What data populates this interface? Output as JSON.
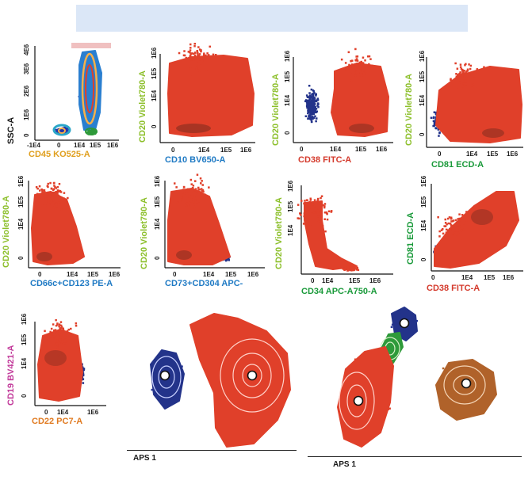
{
  "chart_data": [
    {
      "id": "p1",
      "type": "scatter",
      "xlabel": "CD45 KO525-A",
      "ylabel": "SSC-A",
      "xticks": [
        "-1E4",
        "0",
        "1E4",
        "1E5",
        "1E6"
      ],
      "yticks": [
        "0",
        "1E6",
        "2E6",
        "3E6",
        "4E6"
      ],
      "populations": [
        {
          "name": "",
          "color": "#e0402a",
          "x": 1.15,
          "y": 0.34,
          "ry": 0.23
        },
        {
          "name": "",
          "color": "#1d2a8a",
          "x": 0.15,
          "y": 0.04,
          "ry": 0.02
        },
        {
          "name": "",
          "color": "#2e9a3a",
          "x": 0.55,
          "y": 0.03,
          "ry": 0.015
        }
      ]
    },
    {
      "id": "p2",
      "type": "scatter",
      "xlabel": "CD10 BV650-A",
      "ylabel": "CD20 Violet780-A",
      "xticks": [
        "0",
        "1E4",
        "1E5",
        "1E6"
      ],
      "yticks": [
        "0",
        "1E4",
        "1E5",
        "1E6"
      ]
    },
    {
      "id": "p3",
      "type": "scatter",
      "xlabel": "CD38 FITC-A",
      "ylabel": "CD20 Violet780-A",
      "xticks": [
        "0",
        "1E4",
        "1E5",
        "1E6"
      ],
      "yticks": [
        "0",
        "1E4",
        "1E5",
        "1E6"
      ]
    },
    {
      "id": "p4",
      "type": "scatter",
      "xlabel": "CD81 ECD-A",
      "ylabel": "CD20 Violet780-A",
      "xticks": [
        "0",
        "1E4",
        "1E5",
        "1E6"
      ],
      "yticks": [
        "0",
        "1E4",
        "1E5",
        "1E6"
      ]
    },
    {
      "id": "p5",
      "type": "scatter",
      "xlabel": "CD66c+CD123 PE-A",
      "ylabel": "CD20 Violet780-A",
      "xticks": [
        "0",
        "1E4",
        "1E5",
        "1E6"
      ],
      "yticks": [
        "0",
        "1E4",
        "1E5",
        "1E6"
      ]
    },
    {
      "id": "p6",
      "type": "scatter",
      "xlabel": "CD73+CD304 APC-",
      "ylabel": "CD20 Violet780-A",
      "xticks": [
        "0",
        "1E4",
        "1E5",
        "1E6"
      ],
      "yticks": [
        "0",
        "1E4",
        "1E5",
        "1E6"
      ]
    },
    {
      "id": "p7",
      "type": "scatter",
      "xlabel": "CD34 APC-A750-A",
      "ylabel": "CD20 Violet780-A",
      "xticks": [
        "0",
        "1E4",
        "1E5",
        "1E6"
      ],
      "yticks": [
        "1E4",
        "1E5",
        "1E6"
      ]
    },
    {
      "id": "p8",
      "type": "scatter",
      "xlabel": "CD38 FITC-A",
      "ylabel": "CD81 ECD-A",
      "xticks": [
        "0",
        "1E4",
        "1E5",
        "1E6"
      ],
      "yticks": [
        "0",
        "1E4",
        "1E5",
        "1E6"
      ]
    },
    {
      "id": "p9",
      "type": "scatter",
      "xlabel": "CD22 PC7-A",
      "ylabel": "CD19 BV421-A",
      "xticks": [
        "0",
        "1E4",
        "1E6"
      ],
      "yticks": [
        "0",
        "1E4",
        "1E5",
        "1E6"
      ]
    },
    {
      "id": "aps1",
      "type": "scatter",
      "xlabel": "APS 1"
    },
    {
      "id": "aps2",
      "type": "scatter",
      "xlabel": "APS 1"
    }
  ],
  "colors": {
    "main_population": "#e0402a",
    "blue_population": "#1d2a8a",
    "green_population": "#2e9a3a",
    "brown_population": "#b0622a",
    "label_green": "#8cbf2a",
    "label_blue": "#1f7ac4",
    "label_red": "#d43a2c",
    "label_orange": "#e0a020",
    "label_magenta": "#c23a9a",
    "label_darkgreen": "#1a9a3a",
    "label_black": "#1a1a1a",
    "banner": "#dbe7f7"
  }
}
